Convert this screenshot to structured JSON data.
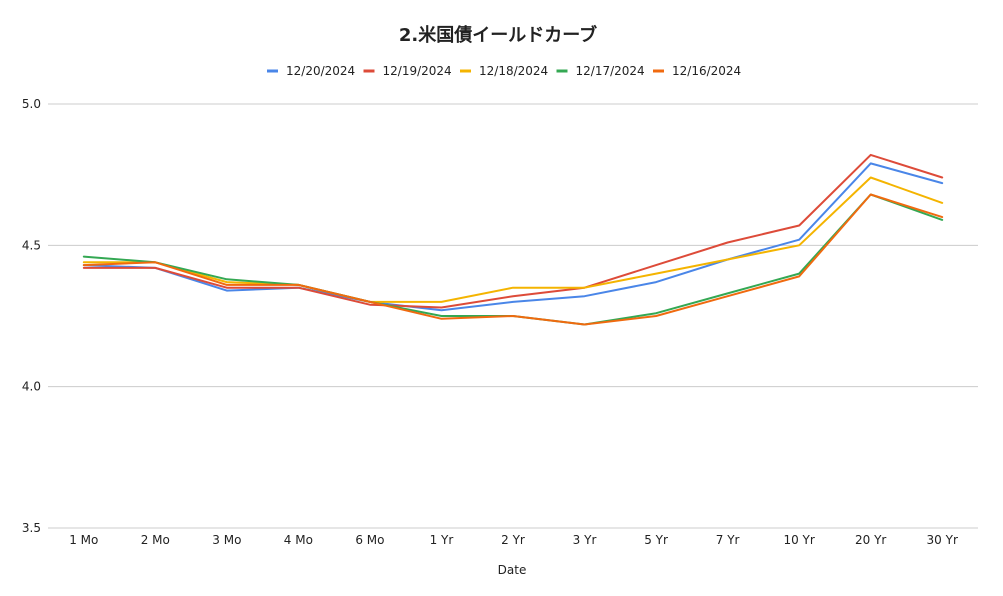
{
  "chart_data": {
    "type": "line",
    "title": "2.米国債イールドカーブ",
    "xlabel": "Date",
    "ylabel": "",
    "categories": [
      "1 Mo",
      "2 Mo",
      "3 Mo",
      "4 Mo",
      "6 Mo",
      "1 Yr",
      "2 Yr",
      "3 Yr",
      "5 Yr",
      "7 Yr",
      "10 Yr",
      "20 Yr",
      "30 Yr"
    ],
    "ylim": [
      3.5,
      5.0
    ],
    "yticks": [
      "3.5",
      "4.0",
      "4.5",
      "5.0"
    ],
    "grid": true,
    "legend_position": "top",
    "series": [
      {
        "name": "12/20/2024",
        "color": "#4a86e8",
        "values": [
          4.43,
          4.42,
          4.34,
          4.35,
          4.3,
          4.27,
          4.3,
          4.32,
          4.37,
          4.45,
          4.52,
          4.79,
          4.72
        ]
      },
      {
        "name": "12/19/2024",
        "color": "#dd4b39",
        "values": [
          4.42,
          4.42,
          4.35,
          4.35,
          4.29,
          4.28,
          4.32,
          4.35,
          4.43,
          4.51,
          4.57,
          4.82,
          4.74
        ]
      },
      {
        "name": "12/18/2024",
        "color": "#f4b400",
        "values": [
          4.44,
          4.44,
          4.37,
          4.36,
          4.3,
          4.3,
          4.35,
          4.35,
          4.4,
          4.45,
          4.5,
          4.74,
          4.65
        ]
      },
      {
        "name": "12/17/2024",
        "color": "#34a853",
        "values": [
          4.46,
          4.44,
          4.38,
          4.36,
          4.3,
          4.25,
          4.25,
          4.22,
          4.26,
          4.33,
          4.4,
          4.68,
          4.59
        ]
      },
      {
        "name": "12/16/2024",
        "color": "#f06a0f",
        "values": [
          4.43,
          4.44,
          4.36,
          4.36,
          4.3,
          4.24,
          4.25,
          4.22,
          4.25,
          4.32,
          4.39,
          4.68,
          4.6
        ]
      }
    ]
  }
}
